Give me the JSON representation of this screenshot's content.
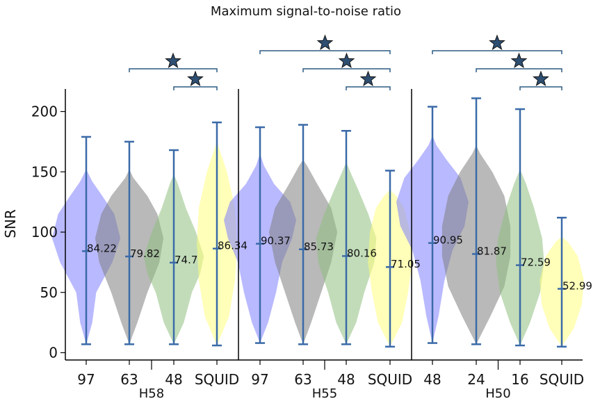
{
  "chart_data": {
    "type": "violin",
    "title": "Maximum signal-to-noise ratio",
    "ylabel": "SNR",
    "ylim": [
      -5,
      222
    ],
    "yticks": [
      0,
      50,
      100,
      150,
      200
    ],
    "colors": {
      "97": "#8080ff",
      "63": "#808080",
      "48": "#90c080",
      "SQUID": "#ffff80",
      "24": "#808080",
      "16": "#90c080",
      "line": "#3a6aa8",
      "bracket": "#2c5a82",
      "star": "#2e4f72"
    },
    "groups": [
      {
        "name": "H58",
        "violins": [
          {
            "label": "97",
            "min": 7,
            "max": 179,
            "median": 84.22,
            "median_label": "84.22",
            "color_key": "97",
            "shape": [
              [
                7,
                0
              ],
              [
                25,
                0.06
              ],
              [
                50,
                0.1
              ],
              [
                75,
                0.26
              ],
              [
                95,
                0.34
              ],
              [
                115,
                0.28
              ],
              [
                130,
                0.16
              ],
              [
                142,
                0.06
              ],
              [
                152,
                0
              ]
            ]
          },
          {
            "label": "63",
            "min": 7,
            "max": 175,
            "median": 79.82,
            "median_label": "79.82",
            "color_key": "63",
            "shape": [
              [
                7,
                0
              ],
              [
                25,
                0.08
              ],
              [
                50,
                0.18
              ],
              [
                75,
                0.3
              ],
              [
                95,
                0.34
              ],
              [
                115,
                0.28
              ],
              [
                130,
                0.18
              ],
              [
                145,
                0.04
              ],
              [
                152,
                0
              ]
            ]
          },
          {
            "label": "48",
            "min": 7,
            "max": 168,
            "median": 74.7,
            "median_label": "74.7",
            "color_key": "48",
            "shape": [
              [
                7,
                0
              ],
              [
                25,
                0.1
              ],
              [
                50,
                0.18
              ],
              [
                65,
                0.26
              ],
              [
                80,
                0.3
              ],
              [
                100,
                0.22
              ],
              [
                120,
                0.12
              ],
              [
                140,
                0.04
              ],
              [
                148,
                0
              ]
            ]
          },
          {
            "label": "SQUID",
            "min": 6,
            "max": 191,
            "median": 86.34,
            "median_label": "86.34",
            "color_key": "SQUID",
            "shape": [
              [
                6,
                0
              ],
              [
                30,
                0.12
              ],
              [
                60,
                0.18
              ],
              [
                90,
                0.2
              ],
              [
                120,
                0.18
              ],
              [
                150,
                0.1
              ],
              [
                165,
                0.04
              ],
              [
                175,
                0
              ]
            ]
          }
        ]
      },
      {
        "name": "H55",
        "violins": [
          {
            "label": "97",
            "min": 8,
            "max": 187,
            "median": 90.37,
            "median_label": "90.37",
            "color_key": "97",
            "shape": [
              [
                8,
                0
              ],
              [
                25,
                0.08
              ],
              [
                50,
                0.16
              ],
              [
                75,
                0.22
              ],
              [
                95,
                0.32
              ],
              [
                110,
                0.36
              ],
              [
                125,
                0.3
              ],
              [
                140,
                0.14
              ],
              [
                155,
                0.04
              ],
              [
                165,
                0
              ]
            ]
          },
          {
            "label": "63",
            "min": 7,
            "max": 189,
            "median": 85.73,
            "median_label": "85.73",
            "color_key": "63",
            "shape": [
              [
                7,
                0
              ],
              [
                25,
                0.08
              ],
              [
                50,
                0.18
              ],
              [
                75,
                0.28
              ],
              [
                100,
                0.34
              ],
              [
                120,
                0.28
              ],
              [
                140,
                0.14
              ],
              [
                155,
                0.04
              ],
              [
                160,
                0
              ]
            ]
          },
          {
            "label": "48",
            "min": 7,
            "max": 184,
            "median": 80.16,
            "median_label": "80.16",
            "color_key": "48",
            "shape": [
              [
                7,
                0
              ],
              [
                25,
                0.1
              ],
              [
                50,
                0.18
              ],
              [
                75,
                0.28
              ],
              [
                95,
                0.3
              ],
              [
                115,
                0.22
              ],
              [
                135,
                0.12
              ],
              [
                150,
                0.04
              ],
              [
                158,
                0
              ]
            ]
          },
          {
            "label": "SQUID",
            "min": 5,
            "max": 151,
            "median": 71.05,
            "median_label": "71.05",
            "color_key": "SQUID",
            "shape": [
              [
                5,
                0
              ],
              [
                25,
                0.12
              ],
              [
                50,
                0.18
              ],
              [
                75,
                0.22
              ],
              [
                100,
                0.2
              ],
              [
                120,
                0.14
              ],
              [
                130,
                0.06
              ],
              [
                135,
                0
              ]
            ]
          }
        ]
      },
      {
        "name": "H50",
        "violins": [
          {
            "label": "48",
            "min": 8,
            "max": 204,
            "median": 90.95,
            "median_label": "90.95",
            "color_key": "97",
            "shape": [
              [
                8,
                0
              ],
              [
                30,
                0.06
              ],
              [
                60,
                0.12
              ],
              [
                85,
                0.2
              ],
              [
                105,
                0.32
              ],
              [
                125,
                0.36
              ],
              [
                145,
                0.28
              ],
              [
                160,
                0.14
              ],
              [
                172,
                0.04
              ],
              [
                180,
                0
              ]
            ]
          },
          {
            "label": "24",
            "min": 7,
            "max": 211,
            "median": 81.87,
            "median_label": "81.87",
            "color_key": "24",
            "shape": [
              [
                7,
                0
              ],
              [
                30,
                0.14
              ],
              [
                55,
                0.28
              ],
              [
                80,
                0.34
              ],
              [
                105,
                0.34
              ],
              [
                130,
                0.28
              ],
              [
                150,
                0.16
              ],
              [
                165,
                0.04
              ],
              [
                172,
                0
              ]
            ]
          },
          {
            "label": "16",
            "min": 6,
            "max": 202,
            "median": 72.59,
            "median_label": "72.59",
            "color_key": "16",
            "shape": [
              [
                6,
                0
              ],
              [
                25,
                0.1
              ],
              [
                50,
                0.2
              ],
              [
                75,
                0.24
              ],
              [
                95,
                0.22
              ],
              [
                120,
                0.14
              ],
              [
                140,
                0.06
              ],
              [
                152,
                0
              ]
            ]
          },
          {
            "label": "SQUID",
            "min": 5,
            "max": 112,
            "median": 52.99,
            "median_label": "52.99",
            "color_key": "SQUID",
            "shape": [
              [
                5,
                0
              ],
              [
                20,
                0.12
              ],
              [
                40,
                0.2
              ],
              [
                60,
                0.22
              ],
              [
                80,
                0.16
              ],
              [
                92,
                0.06
              ],
              [
                96,
                0
              ]
            ]
          }
        ]
      }
    ],
    "significance": [
      {
        "group": 0,
        "from": 1,
        "to": 3,
        "level": 2,
        "marker": "★"
      },
      {
        "group": 0,
        "from": 2,
        "to": 3,
        "level": 1,
        "marker": "★"
      },
      {
        "group": 1,
        "from": 0,
        "to": 3,
        "level": 3,
        "marker": "★"
      },
      {
        "group": 1,
        "from": 1,
        "to": 3,
        "level": 2,
        "marker": "★"
      },
      {
        "group": 1,
        "from": 2,
        "to": 3,
        "level": 1,
        "marker": "★"
      },
      {
        "group": 2,
        "from": 0,
        "to": 3,
        "level": 3,
        "marker": "★"
      },
      {
        "group": 2,
        "from": 1,
        "to": 3,
        "level": 2,
        "marker": "★"
      },
      {
        "group": 2,
        "from": 2,
        "to": 3,
        "level": 1,
        "marker": "★"
      }
    ]
  }
}
